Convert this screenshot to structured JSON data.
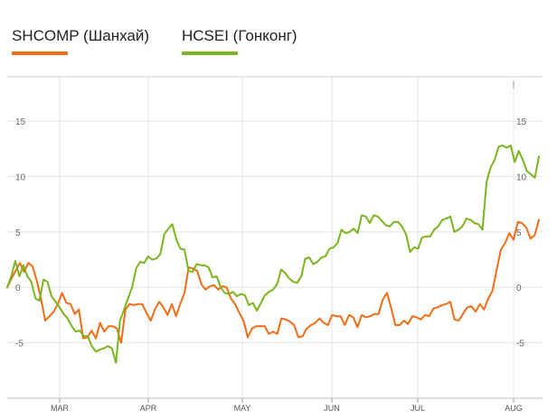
{
  "chart_data": {
    "type": "line",
    "x_labels": [
      "MAR",
      "APR",
      "MAY",
      "JUN",
      "JUL",
      "AUG"
    ],
    "y_ticks": [
      15,
      10,
      5,
      0,
      -5
    ],
    "ylim": [
      -10,
      19
    ],
    "grid": true,
    "legend_position": "top-left",
    "series": [
      {
        "name": "SHCOMP (Шанхай)",
        "color": "#F26B15",
        "values": [
          0,
          0.8,
          1.5,
          2.2,
          1.4,
          2.2,
          1.9,
          0.6,
          -1.0,
          -3.0,
          -2.6,
          -2.2,
          -1.5,
          -0.5,
          -1.4,
          -1.5,
          -2.4,
          -2.0,
          -4.6,
          -4.5,
          -3.9,
          -4.6,
          -3.2,
          -4.0,
          -3.5,
          -3.5,
          -3.7,
          -5.0,
          -2.0,
          -1.5,
          -1.6,
          -1.5,
          -1.5,
          -2.3,
          -3.0,
          -2.0,
          -1.3,
          -1.8,
          -2.5,
          -1.5,
          -2.6,
          -1.5,
          -0.5,
          1.8,
          1.7,
          1.5,
          0.3,
          -0.2,
          0.1,
          0.2,
          -0.2,
          0.1,
          0.0,
          -1.0,
          -1.5,
          -2.3,
          -3.0,
          -4.5,
          -3.7,
          -3.5,
          -3.5,
          -3.5,
          -4.2,
          -4.0,
          -4.2,
          -2.8,
          -2.9,
          -3.1,
          -3.4,
          -4.5,
          -4.4,
          -3.7,
          -3.4,
          -3.2,
          -2.8,
          -3.2,
          -3.4,
          -2.5,
          -2.6,
          -2.6,
          -3.4,
          -2.5,
          -2.7,
          -3.6,
          -2.5,
          -2.7,
          -2.6,
          -2.4,
          -2.4,
          -1.1,
          -0.5,
          -1.9,
          -3.4,
          -3.4,
          -3.0,
          -3.3,
          -2.6,
          -2.7,
          -2.9,
          -2.5,
          -2.6,
          -1.9,
          -1.8,
          -1.6,
          -1.5,
          -1.3,
          -2.9,
          -3.0,
          -2.4,
          -1.8,
          -1.7,
          -2.2,
          -1.5,
          -2.0,
          -1.0,
          -0.3,
          1.6,
          3.4,
          4.0,
          4.9,
          4.3,
          5.9,
          5.8,
          5.4,
          4.4,
          4.7,
          6.1
        ]
      },
      {
        "name": "HCSEI (Гонконг)",
        "color": "#7AB51D",
        "values": [
          0,
          1.0,
          2.4,
          1.0,
          2.0,
          1.0,
          0.5,
          -1.0,
          -1.2,
          0.7,
          0.5,
          -0.8,
          -1.3,
          -1.8,
          -2.4,
          -2.8,
          -3.5,
          -4.0,
          -3.9,
          -4.4,
          -4.4,
          -5.3,
          -5.8,
          -5.6,
          -5.5,
          -5.3,
          -5.5,
          -6.8,
          -3.0,
          -2.0,
          -1.0,
          0.0,
          1.7,
          2.3,
          2.2,
          2.8,
          2.5,
          2.6,
          3.0,
          4.8,
          5.3,
          5.7,
          4.3,
          3.5,
          3.4,
          1.5,
          1.4,
          2.1,
          2.0,
          2.0,
          1.8,
          0.9,
          1.0,
          0.0,
          -0.5,
          -0.6,
          -0.4,
          -0.8,
          -0.6,
          -0.7,
          -1.6,
          -1.4,
          -2.1,
          -1.4,
          -0.7,
          -0.4,
          -0.2,
          0.3,
          1.6,
          1.3,
          0.8,
          0.5,
          0.4,
          1.0,
          2.6,
          2.7,
          2.1,
          2.3,
          2.7,
          2.8,
          3.5,
          3.6,
          4.0,
          5.2,
          4.9,
          5.0,
          5.3,
          4.9,
          6.5,
          6.4,
          5.8,
          6.5,
          6.4,
          6.0,
          5.6,
          5.5,
          5.9,
          5.9,
          5.5,
          4.8,
          3.2,
          3.6,
          3.5,
          4.5,
          4.6,
          4.6,
          5.2,
          5.5,
          6.1,
          6.2,
          6.4,
          5.0,
          5.2,
          5.5,
          6.2,
          6.1,
          5.8,
          5.7,
          5.2,
          9.5,
          10.8,
          11.5,
          12.7,
          12.8,
          12.6,
          12.8,
          11.3,
          12.3,
          11.5,
          10.5,
          10.2,
          9.9,
          11.8
        ]
      }
    ]
  }
}
